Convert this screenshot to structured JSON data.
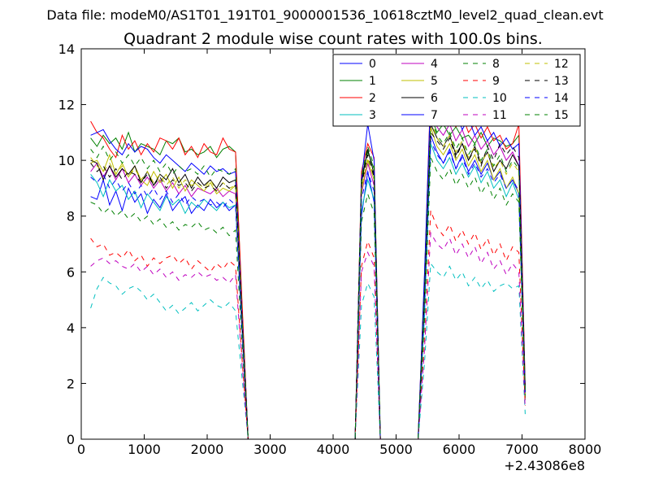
{
  "suptitle": "Data file: modeM0/AS1T01_191T01_9000001536_10618cztM0_level2_quad_clean.evt",
  "chart_data": {
    "type": "line",
    "title": "Quadrant 2 module wise count rates with 100.0s bins.",
    "xlabel": "",
    "ylabel": "",
    "x_offset_label": "+2.43086e8",
    "xlim": [
      0,
      8000
    ],
    "ylim": [
      0,
      14
    ],
    "xticks": [
      0,
      1000,
      2000,
      3000,
      4000,
      5000,
      6000,
      7000,
      8000
    ],
    "yticks": [
      0,
      2,
      4,
      6,
      8,
      10,
      12,
      14
    ],
    "legend_position": "top-right",
    "x": [
      150,
      250,
      350,
      450,
      550,
      650,
      750,
      850,
      950,
      1050,
      1150,
      1250,
      1350,
      1450,
      1550,
      1650,
      1750,
      1850,
      1950,
      2050,
      2150,
      2250,
      2350,
      2450,
      2550,
      2650,
      2750,
      2850,
      2950,
      3050,
      3150,
      3250,
      3350,
      3450,
      3550,
      3650,
      3750,
      3850,
      3950,
      4050,
      4150,
      4250,
      4350,
      4450,
      4550,
      4650,
      4750,
      4850,
      4950,
      5050,
      5150,
      5250,
      5350,
      5450,
      5550,
      5650,
      5750,
      5850,
      5950,
      6050,
      6150,
      6250,
      6350,
      6450,
      6550,
      6650,
      6750,
      6850,
      6950,
      7050
    ],
    "series": [
      {
        "name": "0",
        "color": "#0000ff",
        "dash": "solid",
        "values": [
          8.7,
          8.6,
          9.3,
          8.4,
          8.9,
          8.2,
          9.0,
          8.5,
          8.8,
          8.1,
          8.6,
          8.3,
          8.8,
          8.2,
          8.5,
          8.7,
          8.1,
          8.4,
          8.2,
          8.6,
          8.3,
          8.5,
          8.2,
          8.4,
          4.0,
          0.0,
          0,
          0,
          0,
          0,
          0,
          0,
          0,
          0,
          0,
          0,
          0,
          0,
          0,
          0,
          0,
          0,
          0.0,
          8.0,
          9.6,
          8.5,
          0.0,
          0,
          0,
          0,
          0,
          0,
          0.0,
          4.5,
          10.9,
          10.3,
          9.9,
          10.4,
          9.7,
          10.2,
          9.6,
          10.0,
          9.5,
          9.9,
          9.3,
          9.6,
          9.0,
          9.3,
          8.8,
          1.5
        ]
      },
      {
        "name": "1",
        "color": "#008000",
        "dash": "solid",
        "values": [
          10.8,
          10.5,
          10.9,
          10.6,
          10.8,
          10.4,
          11.0,
          10.3,
          10.6,
          10.5,
          10.4,
          10.2,
          10.7,
          10.6,
          10.8,
          10.3,
          10.4,
          10.2,
          10.3,
          10.5,
          10.1,
          10.4,
          10.5,
          10.3,
          5.0,
          0.0,
          0,
          0,
          0,
          0,
          0,
          0,
          0,
          0,
          0,
          0,
          0,
          0,
          0,
          0,
          0,
          0,
          0.0,
          9.4,
          10.3,
          9.7,
          0.0,
          0,
          0,
          0,
          0,
          0,
          0.0,
          5.5,
          11.6,
          11.0,
          11.3,
          10.9,
          11.2,
          10.8,
          10.9,
          10.6,
          11.0,
          10.5,
          10.8,
          10.7,
          10.5,
          10.6,
          10.9,
          1.8
        ]
      },
      {
        "name": "2",
        "color": "#ff0000",
        "dash": "solid",
        "values": [
          11.4,
          11.0,
          10.8,
          10.4,
          10.1,
          10.9,
          10.4,
          10.7,
          10.2,
          10.6,
          10.3,
          10.8,
          10.7,
          10.4,
          10.8,
          10.2,
          10.5,
          10.1,
          10.6,
          10.3,
          10.2,
          10.8,
          10.4,
          10.3,
          5.1,
          0.0,
          0,
          0,
          0,
          0,
          0,
          0,
          0,
          0,
          0,
          0,
          0,
          0,
          0,
          0,
          0,
          0,
          0.0,
          9.6,
          10.6,
          10.1,
          0.0,
          0,
          0,
          0,
          0,
          0,
          0.0,
          5.8,
          12.6,
          11.9,
          11.7,
          11.5,
          11.2,
          11.6,
          11.0,
          11.3,
          10.8,
          11.2,
          10.7,
          10.9,
          10.4,
          10.6,
          11.3,
          1.9
        ]
      },
      {
        "name": "3",
        "color": "#00bfbf",
        "dash": "solid",
        "values": [
          9.5,
          9.2,
          8.7,
          9.3,
          8.9,
          9.1,
          8.6,
          8.9,
          8.3,
          8.8,
          8.5,
          8.2,
          8.7,
          8.4,
          8.6,
          8.1,
          8.5,
          8.3,
          8.6,
          8.4,
          8.2,
          8.5,
          8.3,
          8.4,
          4.0,
          0.0,
          0,
          0,
          0,
          0,
          0,
          0,
          0,
          0,
          0,
          0,
          0,
          0,
          0,
          0,
          0,
          0,
          0.0,
          8.2,
          9.3,
          8.6,
          0.0,
          0,
          0,
          0,
          0,
          0,
          0.0,
          4.4,
          10.6,
          10.0,
          9.7,
          10.1,
          9.5,
          9.9,
          9.4,
          9.8,
          9.2,
          9.6,
          9.0,
          9.3,
          8.7,
          9.2,
          8.6,
          1.4
        ]
      },
      {
        "name": "4",
        "color": "#bf00bf",
        "dash": "solid",
        "values": [
          9.6,
          9.9,
          9.4,
          9.8,
          9.3,
          9.7,
          9.2,
          9.5,
          9.1,
          9.4,
          9.0,
          9.3,
          8.9,
          9.2,
          8.8,
          9.1,
          8.7,
          9.0,
          8.9,
          8.8,
          9.0,
          8.7,
          8.9,
          8.8,
          4.2,
          0.0,
          0,
          0,
          0,
          0,
          0,
          0,
          0,
          0,
          0,
          0,
          0,
          0,
          0,
          0,
          0,
          0,
          0.0,
          8.8,
          9.9,
          9.1,
          0.0,
          0,
          0,
          0,
          0,
          0,
          0.0,
          5.0,
          11.8,
          11.2,
          10.9,
          11.3,
          10.7,
          11.1,
          10.5,
          10.9,
          10.4,
          10.7,
          10.2,
          10.5,
          10.0,
          10.3,
          9.8,
          1.6
        ]
      },
      {
        "name": "5",
        "color": "#bfbf00",
        "dash": "solid",
        "values": [
          9.9,
          10.0,
          9.6,
          10.2,
          9.5,
          9.9,
          9.4,
          9.8,
          9.3,
          9.1,
          9.6,
          9.2,
          9.5,
          9.0,
          9.4,
          8.9,
          9.3,
          9.1,
          8.9,
          9.2,
          8.8,
          9.0,
          8.9,
          9.1,
          4.3,
          0.0,
          0,
          0,
          0,
          0,
          0,
          0,
          0,
          0,
          0,
          0,
          0,
          0,
          0,
          0,
          0,
          0,
          0.0,
          8.9,
          10.0,
          9.3,
          0.0,
          0,
          0,
          0,
          0,
          0,
          0.0,
          5.1,
          11.2,
          10.5,
          10.2,
          10.6,
          10.0,
          10.4,
          9.8,
          10.2,
          9.6,
          10.0,
          9.3,
          9.7,
          9.0,
          9.4,
          8.8,
          1.5
        ]
      },
      {
        "name": "6",
        "color": "#000000",
        "dash": "solid",
        "values": [
          10.0,
          9.9,
          9.3,
          9.8,
          9.4,
          9.7,
          9.5,
          9.8,
          9.2,
          9.6,
          9.1,
          9.5,
          9.3,
          9.7,
          9.2,
          9.5,
          9.0,
          9.4,
          9.1,
          9.3,
          9.0,
          9.4,
          9.2,
          9.3,
          4.5,
          0.0,
          0,
          0,
          0,
          0,
          0,
          0,
          0,
          0,
          0,
          0,
          0,
          0,
          0,
          0,
          0,
          0,
          0.0,
          9.2,
          10.4,
          9.5,
          0.0,
          0,
          0,
          0,
          0,
          0,
          0.0,
          5.3,
          11.3,
          10.8,
          10.5,
          10.9,
          10.2,
          10.6,
          10.0,
          10.5,
          9.9,
          10.3,
          9.6,
          10.0,
          9.7,
          10.2,
          9.8,
          1.6
        ]
      },
      {
        "name": "7",
        "color": "#0000ff",
        "dash": "solid",
        "values": [
          10.9,
          11.0,
          11.1,
          10.7,
          10.4,
          10.2,
          10.6,
          10.3,
          10.5,
          10.4,
          10.1,
          9.9,
          10.2,
          10.0,
          9.8,
          9.6,
          9.9,
          9.7,
          9.5,
          9.8,
          9.6,
          9.7,
          9.5,
          9.6,
          4.6,
          0.0,
          0,
          0,
          0,
          0,
          0,
          0,
          0,
          0,
          0,
          0,
          0,
          0,
          0,
          0,
          0,
          0,
          0.0,
          9.3,
          11.3,
          10.0,
          0.0,
          0,
          0,
          0,
          0,
          0,
          0.0,
          5.9,
          12.4,
          11.6,
          11.8,
          11.3,
          11.7,
          11.1,
          11.5,
          10.9,
          11.2,
          10.7,
          11.0,
          10.5,
          10.8,
          10.4,
          10.6,
          1.7
        ]
      },
      {
        "name": "8",
        "color": "#008000",
        "dash": "dashed",
        "values": [
          8.5,
          8.4,
          8.1,
          8.3,
          8.0,
          8.2,
          7.9,
          8.1,
          7.8,
          8.0,
          7.7,
          7.9,
          7.6,
          7.8,
          7.5,
          7.7,
          7.6,
          7.8,
          7.5,
          7.6,
          7.4,
          7.6,
          7.3,
          7.5,
          3.6,
          0.0,
          0,
          0,
          0,
          0,
          0,
          0,
          0,
          0,
          0,
          0,
          0,
          0,
          0,
          0,
          0,
          0,
          0.0,
          7.8,
          8.8,
          8.1,
          0.0,
          0,
          0,
          0,
          0,
          0,
          0.0,
          4.2,
          10.1,
          9.6,
          9.3,
          9.7,
          9.1,
          9.5,
          9.0,
          9.4,
          8.8,
          9.2,
          8.6,
          9.0,
          8.4,
          8.8,
          8.5,
          1.4
        ]
      },
      {
        "name": "9",
        "color": "#ff0000",
        "dash": "dashed",
        "values": [
          7.2,
          6.9,
          7.0,
          6.6,
          6.7,
          6.5,
          6.8,
          6.4,
          6.6,
          6.2,
          6.5,
          6.3,
          6.5,
          6.6,
          6.3,
          6.5,
          6.1,
          6.4,
          6.2,
          6.0,
          6.3,
          6.1,
          6.4,
          6.2,
          3.0,
          0.0,
          0,
          0,
          0,
          0,
          0,
          0,
          0,
          0,
          0,
          0,
          0,
          0,
          0,
          0,
          0,
          0,
          0.0,
          6.2,
          7.1,
          6.5,
          0.0,
          0,
          0,
          0,
          0,
          0,
          0.0,
          3.4,
          8.2,
          7.6,
          7.3,
          7.7,
          7.1,
          7.5,
          7.0,
          7.4,
          6.8,
          7.2,
          6.6,
          7.0,
          6.4,
          6.9,
          6.7,
          1.2
        ]
      },
      {
        "name": "10",
        "color": "#00bfbf",
        "dash": "dashed",
        "values": [
          4.7,
          5.4,
          5.8,
          5.6,
          5.5,
          5.2,
          5.4,
          5.5,
          5.3,
          5.0,
          5.2,
          4.9,
          4.6,
          4.8,
          4.5,
          4.7,
          4.9,
          4.6,
          4.8,
          5.0,
          4.8,
          4.7,
          4.9,
          4.6,
          2.3,
          0.0,
          0,
          0,
          0,
          0,
          0,
          0,
          0,
          0,
          0,
          0,
          0,
          0,
          0,
          0,
          0,
          0,
          0.0,
          4.8,
          5.6,
          5.1,
          0.0,
          0,
          0,
          0,
          0,
          0,
          0.0,
          2.7,
          6.3,
          6.0,
          5.8,
          6.2,
          5.7,
          6.0,
          5.5,
          5.8,
          5.4,
          5.7,
          5.3,
          5.5,
          5.6,
          5.4,
          5.5,
          0.9
        ]
      },
      {
        "name": "11",
        "color": "#bf00bf",
        "dash": "dashed",
        "values": [
          6.2,
          6.4,
          6.5,
          6.3,
          6.4,
          6.2,
          6.1,
          6.3,
          6.0,
          6.2,
          5.9,
          6.1,
          5.8,
          6.0,
          5.7,
          5.9,
          5.8,
          6.0,
          5.8,
          5.9,
          5.7,
          5.8,
          5.6,
          5.9,
          2.8,
          0.0,
          0,
          0,
          0,
          0,
          0,
          0,
          0,
          0,
          0,
          0,
          0,
          0,
          0,
          0,
          0,
          0,
          0.0,
          6.0,
          6.7,
          6.2,
          0.0,
          0,
          0,
          0,
          0,
          0,
          0.0,
          3.2,
          7.4,
          7.0,
          6.8,
          7.2,
          6.6,
          7.0,
          6.5,
          6.9,
          6.3,
          6.7,
          6.1,
          6.4,
          5.9,
          6.3,
          6.0,
          1.1
        ]
      },
      {
        "name": "12",
        "color": "#bfbf00",
        "dash": "dashed",
        "values": [
          10.1,
          9.8,
          9.6,
          9.9,
          9.5,
          9.8,
          9.4,
          9.7,
          9.3,
          9.6,
          9.2,
          9.5,
          9.1,
          9.4,
          9.0,
          9.3,
          9.1,
          9.2,
          9.0,
          9.3,
          8.9,
          9.2,
          9.0,
          9.1,
          4.4,
          0.0,
          0,
          0,
          0,
          0,
          0,
          0,
          0,
          0,
          0,
          0,
          0,
          0,
          0,
          0,
          0,
          0,
          0.0,
          9.0,
          10.1,
          9.4,
          0.0,
          0,
          0,
          0,
          0,
          0,
          0.0,
          5.2,
          11.4,
          10.8,
          10.5,
          10.9,
          10.3,
          10.7,
          10.1,
          10.5,
          9.9,
          10.3,
          9.7,
          10.0,
          9.5,
          9.9,
          9.6,
          1.6
        ]
      },
      {
        "name": "13",
        "color": "#000000",
        "dash": "dashed",
        "values": [
          9.9,
          9.6,
          9.8,
          9.4,
          9.7,
          9.3,
          9.6,
          9.5,
          9.2,
          9.5,
          9.1,
          9.4,
          9.0,
          9.3,
          9.1,
          9.2,
          8.9,
          9.2,
          9.0,
          9.1,
          8.9,
          9.2,
          9.0,
          9.1,
          4.4,
          0.0,
          0,
          0,
          0,
          0,
          0,
          0,
          0,
          0,
          0,
          0,
          0,
          0,
          0,
          0,
          0,
          0,
          0.0,
          9.1,
          10.2,
          9.4,
          0.0,
          0,
          0,
          0,
          0,
          0,
          0.0,
          5.2,
          11.0,
          10.7,
          10.4,
          10.8,
          10.1,
          10.6,
          10.0,
          10.4,
          9.8,
          10.5,
          10.0,
          10.6,
          10.2,
          10.5,
          10.1,
          1.7
        ]
      },
      {
        "name": "14",
        "color": "#0000ff",
        "dash": "dashed",
        "values": [
          9.4,
          9.2,
          9.5,
          9.0,
          9.3,
          8.9,
          9.2,
          8.8,
          9.1,
          8.7,
          9.0,
          8.6,
          8.9,
          8.5,
          8.8,
          8.4,
          8.7,
          8.5,
          8.6,
          8.4,
          8.5,
          8.3,
          8.6,
          8.4,
          4.1,
          0.0,
          0,
          0,
          0,
          0,
          0,
          0,
          0,
          0,
          0,
          0,
          0,
          0,
          0,
          0,
          0,
          0,
          0.0,
          8.6,
          9.6,
          8.9,
          0.0,
          0,
          0,
          0,
          0,
          0,
          0.0,
          4.9,
          10.7,
          10.2,
          9.9,
          10.3,
          9.7,
          10.1,
          9.5,
          9.9,
          9.4,
          9.7,
          9.2,
          9.5,
          9.0,
          9.3,
          8.9,
          1.5
        ]
      },
      {
        "name": "15",
        "color": "#008000",
        "dash": "dashed",
        "values": [
          10.4,
          10.1,
          10.5,
          10.0,
          10.3,
          9.9,
          10.2,
          9.8,
          10.1,
          9.7,
          10.0,
          9.6,
          9.9,
          9.5,
          9.8,
          9.6,
          9.7,
          9.5,
          9.8,
          9.4,
          9.7,
          9.6,
          9.5,
          9.7,
          4.6,
          0.0,
          0,
          0,
          0,
          0,
          0,
          0,
          0,
          0,
          0,
          0,
          0,
          0,
          0,
          0,
          0,
          0,
          0.0,
          9.4,
          10.5,
          9.8,
          0.0,
          0,
          0,
          0,
          0,
          0,
          0.0,
          5.3,
          11.5,
          10.9,
          10.6,
          11.0,
          10.4,
          10.8,
          10.2,
          10.6,
          10.0,
          10.4,
          9.8,
          10.2,
          9.6,
          10.0,
          9.7,
          1.7
        ]
      }
    ]
  }
}
